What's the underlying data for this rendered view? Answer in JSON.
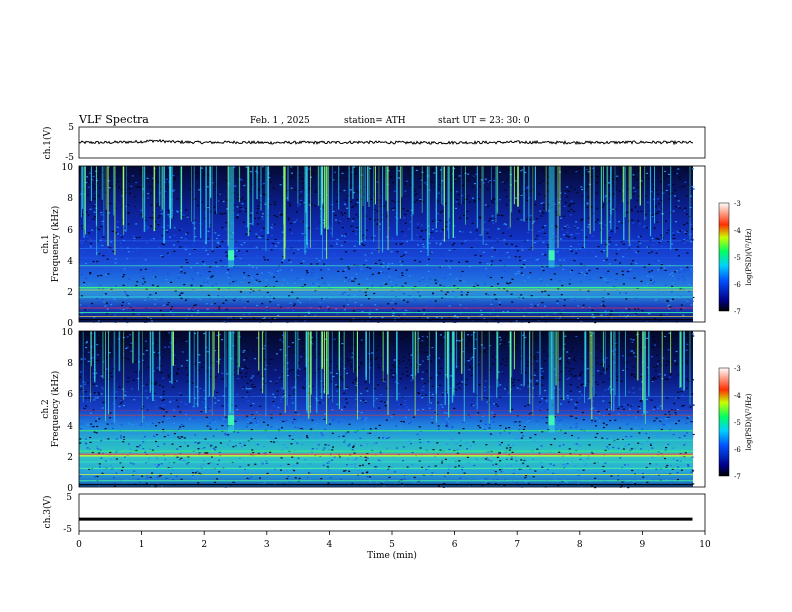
{
  "header": {
    "title": "VLF  Spectra",
    "date": "Feb. 1  , 2025",
    "station": "station= ATH",
    "start": "start  UT  =   23: 30: 0"
  },
  "chart_data": [
    {
      "type": "line",
      "panel": "ch1-waveform",
      "ylabel": "ch.1(V)",
      "ylim": [
        -5,
        5
      ],
      "yticks": [
        "5",
        "-5"
      ],
      "x": [
        0,
        0.5,
        1,
        1.2,
        1.5,
        2,
        2.5,
        3,
        3.5,
        4,
        4.5,
        5,
        5.5,
        6,
        6.5,
        7,
        7.5,
        8,
        8.5,
        9,
        9.5,
        9.8
      ],
      "y": [
        0,
        0,
        0.3,
        0.6,
        0.2,
        0,
        0.1,
        -0.1,
        0,
        0,
        0.1,
        0,
        -0.1,
        0,
        0,
        0.1,
        0,
        0,
        0,
        0.1,
        0,
        0
      ]
    },
    {
      "type": "heatmap",
      "panel": "ch1-spectrogram",
      "ylabel": "Frequency  (kHz)",
      "channel_label": "ch.1",
      "ylim": [
        0,
        10
      ],
      "yticks": [
        "10",
        "8",
        "6",
        "4",
        "2",
        "0"
      ],
      "colorbar": {
        "label": "log(PSD)(V²/Hz)",
        "range": [
          -7,
          -3
        ],
        "ticks": [
          "-3",
          "-4",
          "-5",
          "-6",
          "-7"
        ]
      }
    },
    {
      "type": "heatmap",
      "panel": "ch2-spectrogram",
      "ylabel": "Frequency  (kHz)",
      "channel_label": "ch.2",
      "ylim": [
        0,
        10
      ],
      "yticks": [
        "10",
        "8",
        "6",
        "4",
        "2",
        "0"
      ],
      "colorbar": {
        "label": "log(PSD)(V²/Hz)",
        "range": [
          -7,
          -3
        ],
        "ticks": [
          "-3",
          "-4",
          "-5",
          "-6",
          "-7"
        ]
      }
    },
    {
      "type": "line",
      "panel": "ch3-waveform",
      "ylabel": "ch.3(V)",
      "ylim": [
        -5,
        5
      ],
      "yticks": [
        "5",
        "-5"
      ],
      "x": [
        0,
        9.8
      ],
      "y": [
        -1.8,
        -1.8
      ],
      "xlabel": "Time  (min)",
      "xlim": [
        0,
        10
      ],
      "xticks": [
        "0",
        "1",
        "2",
        "3",
        "4",
        "5",
        "6",
        "7",
        "8",
        "9",
        "10"
      ]
    }
  ]
}
